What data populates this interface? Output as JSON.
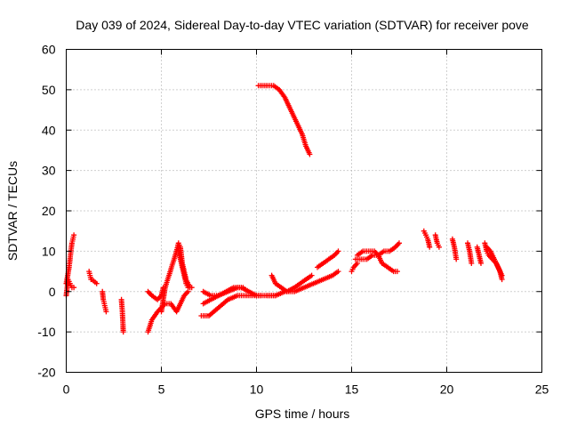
{
  "chart_data": {
    "type": "scatter",
    "title": "Day 039 of 2024, Sidereal Day-to-day VTEC variation (SDTVAR) for receiver pove",
    "xlabel": "GPS time / hours",
    "ylabel": "SDTVAR / TECUs",
    "xlim": [
      0,
      25
    ],
    "ylim": [
      -20,
      60
    ],
    "xticks": [
      "0",
      "5",
      "10",
      "15",
      "20",
      "25"
    ],
    "yticks": [
      "-20",
      "-10",
      "0",
      "10",
      "20",
      "30",
      "40",
      "50",
      "60"
    ],
    "grid": true,
    "marker": "plus",
    "color": "#ff0000",
    "series": [
      {
        "name": "arc_00_0",
        "x": [
          0.0,
          0.08,
          0.15,
          0.22,
          0.3,
          0.35,
          0.4
        ],
        "y": [
          2,
          4,
          6,
          9,
          12,
          13,
          14
        ]
      },
      {
        "name": "arc_00_1",
        "x": [
          0.0,
          0.1,
          0.2,
          0.3,
          0.4
        ],
        "y": [
          -1,
          3,
          2,
          1,
          1
        ]
      },
      {
        "name": "arc_01",
        "x": [
          1.2,
          1.25,
          1.3,
          1.35,
          1.6
        ],
        "y": [
          5,
          4,
          3,
          3,
          2
        ]
      },
      {
        "name": "arc_02",
        "x": [
          1.9,
          1.95,
          2.0,
          2.05,
          2.1
        ],
        "y": [
          0,
          -2,
          -3,
          -4,
          -5
        ]
      },
      {
        "name": "arc_03",
        "x": [
          2.9,
          2.95,
          2.98,
          3.0
        ],
        "y": [
          -2,
          -5,
          -8,
          -10
        ]
      },
      {
        "name": "arc_04",
        "x": [
          4.3,
          4.5,
          4.8,
          5.0,
          5.2,
          5.5,
          5.8,
          6.0,
          6.2,
          6.4
        ],
        "y": [
          -10,
          -7,
          -5,
          -4,
          -3,
          -3,
          -5,
          -3,
          -1,
          0
        ]
      },
      {
        "name": "arc_05",
        "x": [
          4.3,
          4.5,
          4.8,
          5.0,
          5.1
        ],
        "y": [
          0,
          -1,
          -2,
          -1,
          1
        ]
      },
      {
        "name": "arc_06",
        "x": [
          5.0,
          5.2,
          5.4,
          5.6,
          5.8,
          5.9,
          6.0,
          6.1,
          6.3,
          6.5
        ],
        "y": [
          -5,
          1,
          4,
          7,
          10,
          12,
          11,
          7,
          3,
          1
        ]
      },
      {
        "name": "arc_07",
        "x": [
          5.9,
          6.0,
          6.1,
          6.2,
          6.3,
          6.4,
          6.6
        ],
        "y": [
          10,
          8,
          6,
          4,
          2,
          1,
          1
        ]
      },
      {
        "name": "arc_08",
        "x": [
          7.1,
          7.5,
          8.0,
          8.5,
          9.0,
          9.5,
          10.0,
          10.5,
          11.0
        ],
        "y": [
          -6,
          -6,
          -4,
          -2,
          -1,
          -1,
          -1,
          -1,
          -1
        ]
      },
      {
        "name": "arc_09",
        "x": [
          7.2,
          7.6,
          8.0,
          8.4,
          8.8,
          9.2,
          9.6,
          10.0,
          10.2
        ],
        "y": [
          -3,
          -2,
          -1,
          0,
          1,
          1,
          0,
          -1,
          -1
        ]
      },
      {
        "name": "arc_10",
        "x": [
          7.2,
          7.6,
          8.0,
          8.5,
          9.0,
          9.3
        ],
        "y": [
          0,
          -1,
          -1,
          0,
          1,
          1
        ]
      },
      {
        "name": "arc_11",
        "x": [
          10.1,
          10.3,
          10.6,
          10.9,
          11.2,
          11.5,
          11.8,
          12.0,
          12.2,
          12.4,
          12.6,
          12.8
        ],
        "y": [
          51,
          51,
          51,
          51,
          50,
          48,
          45,
          43,
          41,
          39,
          36,
          34
        ]
      },
      {
        "name": "arc_12",
        "x": [
          10.8,
          11.0,
          11.3,
          11.6,
          12.0,
          12.3,
          12.6,
          12.9
        ],
        "y": [
          4,
          2,
          1,
          0,
          1,
          2,
          3,
          4
        ]
      },
      {
        "name": "arc_13",
        "x": [
          10.6,
          11.0,
          11.5,
          12.0,
          12.5,
          13.0,
          13.5,
          14.0,
          14.3
        ],
        "y": [
          -1,
          -1,
          0,
          0,
          1,
          2,
          3,
          4,
          5
        ]
      },
      {
        "name": "arc_14",
        "x": [
          13.2,
          13.5,
          13.8,
          14.1,
          14.3
        ],
        "y": [
          6,
          7,
          8,
          9,
          10
        ]
      },
      {
        "name": "arc_15",
        "x": [
          15.0,
          15.1,
          15.3
        ],
        "y": [
          5,
          6,
          7
        ]
      },
      {
        "name": "arc_16",
        "x": [
          15.2,
          15.5,
          15.8,
          16.1,
          16.4,
          16.7,
          17.0,
          17.3,
          17.5
        ],
        "y": [
          8,
          8,
          8,
          9,
          9,
          10,
          10,
          11,
          12
        ]
      },
      {
        "name": "arc_17",
        "x": [
          15.3,
          15.6,
          15.9,
          16.2,
          16.4,
          16.6,
          16.9,
          17.2,
          17.4
        ],
        "y": [
          9,
          10,
          10,
          10,
          9,
          7,
          6,
          5,
          5
        ]
      },
      {
        "name": "arc_18",
        "x": [
          18.8,
          18.9,
          19.0,
          19.1
        ],
        "y": [
          15,
          14,
          13,
          11
        ]
      },
      {
        "name": "arc_19",
        "x": [
          19.4,
          19.5,
          19.6
        ],
        "y": [
          14,
          12,
          11
        ]
      },
      {
        "name": "arc_20",
        "x": [
          20.3,
          20.4,
          20.5
        ],
        "y": [
          13,
          11,
          8
        ]
      },
      {
        "name": "arc_21",
        "x": [
          21.1,
          21.2,
          21.3
        ],
        "y": [
          12,
          10,
          7
        ]
      },
      {
        "name": "arc_22",
        "x": [
          21.6,
          21.7,
          21.8
        ],
        "y": [
          11,
          9,
          7
        ]
      },
      {
        "name": "arc_23",
        "x": [
          22.0,
          22.1,
          22.2,
          22.4,
          22.6,
          22.8,
          22.9
        ],
        "y": [
          12,
          10,
          9,
          8,
          7,
          5,
          3
        ]
      },
      {
        "name": "arc_24",
        "x": [
          22.1,
          22.3,
          22.5,
          22.7,
          22.9
        ],
        "y": [
          11,
          10,
          8,
          6,
          4
        ]
      }
    ]
  }
}
